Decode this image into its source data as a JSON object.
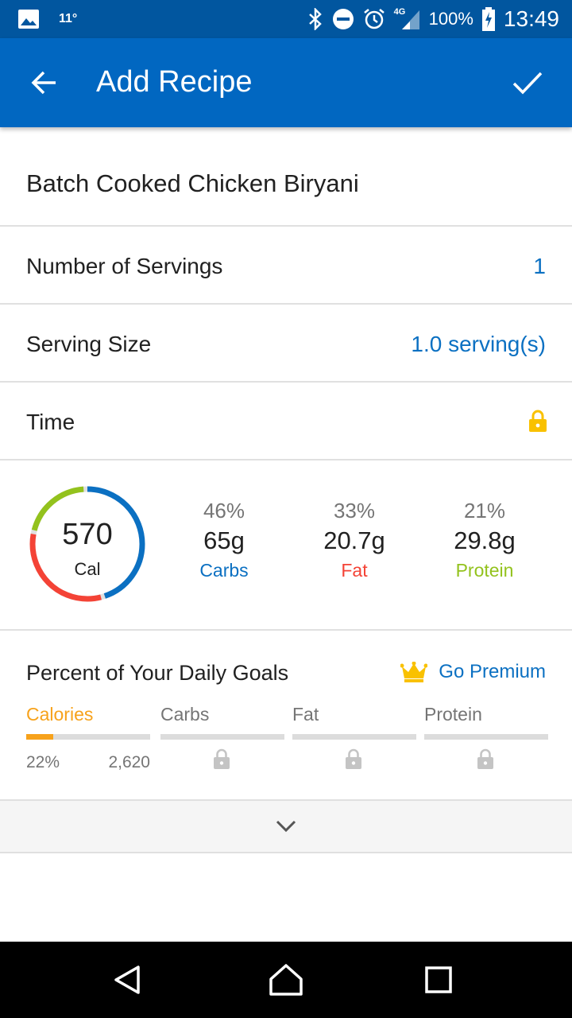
{
  "status_bar": {
    "temperature": "11°",
    "battery": "100%",
    "time": "13:49",
    "network": "4G"
  },
  "app_bar": {
    "title": "Add Recipe"
  },
  "recipe": {
    "name": "Batch Cooked Chicken Biryani",
    "servings_label": "Number of Servings",
    "servings_value": "1",
    "serving_size_label": "Serving Size",
    "serving_size_value": "1.0 serving(s)",
    "time_label": "Time"
  },
  "nutrition": {
    "calories": "570",
    "calories_unit": "Cal",
    "macros": [
      {
        "percent": "46%",
        "grams": "65g",
        "name": "Carbs",
        "color": "#0b70c2"
      },
      {
        "percent": "33%",
        "grams": "20.7g",
        "name": "Fat",
        "color": "#f44336"
      },
      {
        "percent": "21%",
        "grams": "29.8g",
        "name": "Protein",
        "color": "#93c21d"
      }
    ],
    "ring_fractions": {
      "carbs": 0.46,
      "fat": 0.33,
      "protein": 0.21
    }
  },
  "goals": {
    "title": "Percent of Your Daily Goals",
    "premium_label": "Go Premium",
    "items": [
      {
        "label": "Calories",
        "percent": "22%",
        "total": "2,620",
        "fill": 0.22,
        "locked": false
      },
      {
        "label": "Carbs",
        "locked": true
      },
      {
        "label": "Fat",
        "locked": true
      },
      {
        "label": "Protein",
        "locked": true
      }
    ]
  },
  "colors": {
    "primary": "#0167c1",
    "status_bar": "#01569f",
    "accent_orange": "#f7a21b",
    "gold": "#f9c100"
  }
}
